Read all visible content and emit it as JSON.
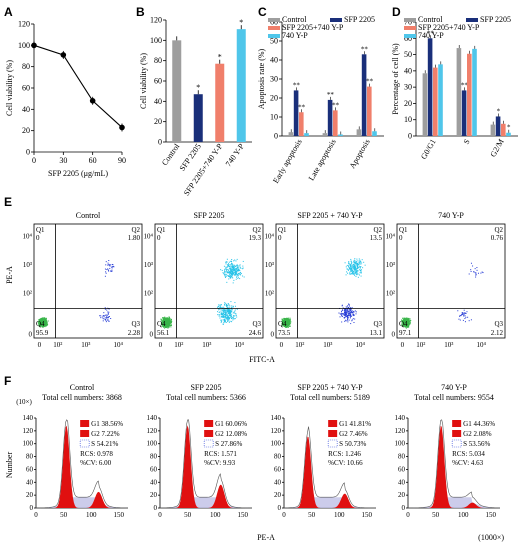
{
  "panels": {
    "A": "A",
    "B": "B",
    "C": "C",
    "D": "D",
    "E": "E",
    "F": "F"
  },
  "colors": {
    "control": "#9e9e9e",
    "sfp": "#1a2f7a",
    "combo": "#f07f6b",
    "yp": "#4fc6ea",
    "line": "#000000",
    "hist_fill": "#e01010",
    "hist_outline": "#bfbfe6",
    "dot_blue": "#2a3fd6",
    "dot_cyan": "#27c3e8",
    "dot_green": "#39b54a"
  },
  "chart_data": [
    {
      "id": "A",
      "type": "line",
      "xlabel": "SFP 2205 (μg/mL)",
      "ylabel": "Cell viability (%)",
      "x": [
        0,
        30,
        60,
        90
      ],
      "values": [
        100,
        91,
        48,
        23
      ],
      "xticks": [
        "0",
        "30",
        "60",
        "90"
      ],
      "yticks": [
        "0",
        "20",
        "40",
        "60",
        "80",
        "100",
        "120"
      ],
      "xlim": [
        0,
        90
      ],
      "ylim": [
        0,
        120
      ]
    },
    {
      "id": "B",
      "type": "bar",
      "ylabel": "Cell viability (%)",
      "categories": [
        "Control",
        "SFP 2205",
        "SFP 2205+740 Y-P",
        "740 Y-P"
      ],
      "values": [
        100,
        47,
        77,
        111
      ],
      "stars": [
        "",
        "*",
        "*",
        "*"
      ],
      "yticks": [
        "0",
        "20",
        "40",
        "60",
        "80",
        "100",
        "120"
      ],
      "ylim": [
        0,
        120
      ]
    },
    {
      "id": "C",
      "type": "bar",
      "ylabel": "Apoptosis rate (%)",
      "categories": [
        "Early apoptosis",
        "Late apoptosis",
        "Apoptosis"
      ],
      "series": [
        {
          "name": "Control",
          "values": [
            2,
            1.5,
            3.5
          ],
          "stars": [
            "",
            "",
            ""
          ]
        },
        {
          "name": "SFP 2205",
          "values": [
            24,
            19,
            43
          ],
          "stars": [
            "**",
            "**",
            "**"
          ]
        },
        {
          "name": "SFP 2205+740 Y-P",
          "values": [
            12.5,
            13.5,
            26
          ],
          "stars": [
            "**",
            "**",
            "**"
          ]
        },
        {
          "name": "740 Y-P",
          "values": [
            1.5,
            0.8,
            2.5
          ],
          "stars": [
            "",
            "",
            ""
          ]
        }
      ],
      "yticks": [
        "0",
        "10",
        "20",
        "30",
        "40",
        "50",
        "60"
      ],
      "ylim": [
        0,
        60
      ]
    },
    {
      "id": "D",
      "type": "bar",
      "ylabel": "Percentage of cell (%)",
      "categories": [
        "G0/G1",
        "S",
        "G2/M"
      ],
      "series": [
        {
          "name": "Control",
          "values": [
            38.5,
            54,
            7
          ],
          "stars": [
            "",
            "",
            ""
          ]
        },
        {
          "name": "SFP 2205",
          "values": [
            60,
            28,
            12
          ],
          "stars": [
            "**",
            "**",
            "*"
          ]
        },
        {
          "name": "SFP 2205+740 Y-P",
          "values": [
            42,
            50.5,
            7.5
          ],
          "stars": [
            "",
            "",
            ""
          ]
        },
        {
          "name": "740 Y-P",
          "values": [
            44,
            53.5,
            2
          ],
          "stars": [
            "",
            "",
            "*"
          ]
        }
      ],
      "yticks": [
        "0",
        "10",
        "20",
        "30",
        "40",
        "50",
        "60",
        "70"
      ],
      "ylim": [
        0,
        70
      ]
    },
    {
      "id": "E",
      "type": "scatter",
      "xlabel": "FITC-A",
      "ylabel": "PE-A",
      "plots": [
        {
          "title": "Control",
          "Q1": "Q1",
          "Q2": "Q2",
          "Q3": "Q3",
          "Q4": "Q4",
          "q1": "0",
          "q2": "1.80",
          "q3": "2.28",
          "q4": "95.9"
        },
        {
          "title": "SFP 2205",
          "Q1": "Q1",
          "Q2": "Q2",
          "Q3": "Q3",
          "Q4": "Q4",
          "q1": "0",
          "q2": "19.3",
          "q3": "24.6",
          "q4": "56.1"
        },
        {
          "title": "SFP 2205 + 740 Y-P",
          "Q1": "Q1",
          "Q2": "Q2",
          "Q3": "Q3",
          "Q4": "Q4",
          "q1": "0",
          "q2": "13.5",
          "q3": "13.1",
          "q4": "73.5"
        },
        {
          "title": "740 Y-P",
          "Q1": "Q1",
          "Q2": "Q2",
          "Q3": "Q3",
          "Q4": "Q4",
          "q1": "0",
          "q2": "0.76",
          "q3": "2.12",
          "q4": "97.1"
        }
      ],
      "yticks": [
        "10⁴",
        "10³",
        "10²",
        "0"
      ],
      "xticks": [
        "0",
        "10²",
        "10³",
        "10⁴"
      ]
    },
    {
      "id": "F",
      "type": "area",
      "xlabel": "PE-A",
      "ylabel": "Number",
      "xunit": "(1000×)",
      "yunit": "(10×)",
      "plots": [
        {
          "title": "Control",
          "total": "Total cell numbers: 3868",
          "g1": "G1  38.56%",
          "g2": "G2  7.22%",
          "s": "S   54.21%",
          "rcs": "RCS: 0.978",
          "cv": "%CV: 6.00",
          "g1pos": 0.33,
          "g2pos": 0.68,
          "g1h": 0.92,
          "g2h": 0.18
        },
        {
          "title": "SFP 2205",
          "total": "Total cell numbers: 5366",
          "g1": "G1  60.06%",
          "g2": "G2  12.08%",
          "s": "S   27.86%",
          "rcs": "RCS: 1.571",
          "cv": "%CV: 9.93",
          "g1pos": 0.3,
          "g2pos": 0.66,
          "g1h": 0.92,
          "g2h": 0.26
        },
        {
          "title": "SFP 2205 + 740 Y-P",
          "total": "Total cell numbers: 5189",
          "g1": "G1  41.81%",
          "g2": "G2  7.46%",
          "s": "S   50.73%",
          "rcs": "RCS: 1.246",
          "cv": "%CV: 10.66",
          "g1pos": 0.26,
          "g2pos": 0.66,
          "g1h": 0.8,
          "g2h": 0.16
        },
        {
          "title": "740 Y-P",
          "total": "Total cell numbers: 9554",
          "g1": "G1  44.36%",
          "g2": "G2  2.08%",
          "s": "S   53.56%",
          "rcs": "RCS: 5.034",
          "cv": "%CV: 4.63",
          "g1pos": 0.36,
          "g2pos": 0.7,
          "g1h": 0.92,
          "g2h": 0.06
        }
      ],
      "yticks": [
        "0",
        "20",
        "40",
        "60",
        "80",
        "100",
        "120",
        "140"
      ],
      "xticks": [
        "0",
        "50",
        "100",
        "150"
      ]
    }
  ]
}
